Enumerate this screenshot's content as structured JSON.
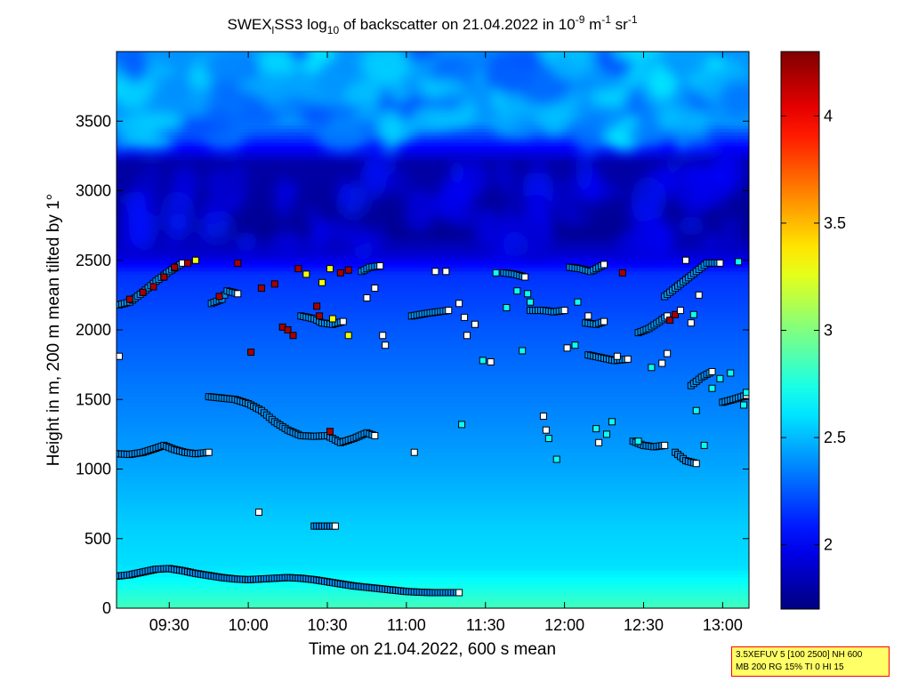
{
  "chart_data": {
    "type": "heatmap",
    "title_parts": [
      "SWEX",
      "l",
      "SS3 log",
      "10",
      " of backscatter on 21.04.2022 in 10",
      "-9",
      " m",
      "-1",
      " sr",
      "-1"
    ],
    "xlabel": "Time on 21.04.2022, 600 s mean",
    "ylabel": "Height in m, 200 m mean tilted by 1°",
    "x_unit": "minutes after midnight",
    "xlim": [
      550,
      790
    ],
    "ylim": [
      0,
      4000
    ],
    "x_ticks": [
      {
        "v": 570,
        "label": "09:30"
      },
      {
        "v": 600,
        "label": "10:00"
      },
      {
        "v": 630,
        "label": "10:30"
      },
      {
        "v": 660,
        "label": "11:00"
      },
      {
        "v": 690,
        "label": "11:30"
      },
      {
        "v": 720,
        "label": "12:00"
      },
      {
        "v": 750,
        "label": "12:30"
      },
      {
        "v": 780,
        "label": "13:00"
      }
    ],
    "y_ticks": [
      {
        "v": 0,
        "label": "0"
      },
      {
        "v": 500,
        "label": "500"
      },
      {
        "v": 1000,
        "label": "1000"
      },
      {
        "v": 1500,
        "label": "1500"
      },
      {
        "v": 2000,
        "label": "2000"
      },
      {
        "v": 2500,
        "label": "2500"
      },
      {
        "v": 3000,
        "label": "3000"
      },
      {
        "v": 3500,
        "label": "3500"
      }
    ],
    "colorbar": {
      "range": [
        1.7,
        4.3
      ],
      "ticks": [
        {
          "v": 2,
          "label": "2"
        },
        {
          "v": 2.5,
          "label": "2.5"
        },
        {
          "v": 3,
          "label": "3"
        },
        {
          "v": 3.5,
          "label": "3.5"
        },
        {
          "v": 4,
          "label": "4"
        }
      ],
      "colormap": "jet"
    },
    "field_profile": [
      {
        "h": 0,
        "v": 2.85
      },
      {
        "h": 120,
        "v": 2.75
      },
      {
        "h": 300,
        "v": 2.6
      },
      {
        "h": 600,
        "v": 2.55
      },
      {
        "h": 1000,
        "v": 2.45
      },
      {
        "h": 1500,
        "v": 2.35
      },
      {
        "h": 2000,
        "v": 2.25
      },
      {
        "h": 2400,
        "v": 2.15
      },
      {
        "h": 2550,
        "v": 1.9
      },
      {
        "h": 2700,
        "v": 1.75
      },
      {
        "h": 3200,
        "v": 1.8
      },
      {
        "h": 3500,
        "v": 2.4
      },
      {
        "h": 4000,
        "v": 2.4
      }
    ],
    "layer_series": [
      {
        "v": 2.4,
        "points": [
          [
            550,
            230
          ],
          [
            555,
            240
          ],
          [
            560,
            260
          ],
          [
            565,
            280
          ],
          [
            570,
            285
          ],
          [
            575,
            270
          ],
          [
            580,
            250
          ],
          [
            585,
            235
          ],
          [
            590,
            220
          ],
          [
            595,
            210
          ],
          [
            600,
            205
          ],
          [
            605,
            210
          ],
          [
            610,
            215
          ],
          [
            615,
            220
          ],
          [
            620,
            215
          ],
          [
            625,
            205
          ],
          [
            630,
            190
          ],
          [
            635,
            175
          ],
          [
            640,
            160
          ],
          [
            645,
            150
          ],
          [
            650,
            140
          ],
          [
            655,
            130
          ],
          [
            660,
            120
          ],
          [
            665,
            115
          ],
          [
            670,
            112
          ],
          [
            675,
            112
          ],
          [
            680,
            112
          ]
        ]
      },
      {
        "v": 2.4,
        "points": [
          [
            550,
            1110
          ],
          [
            555,
            1105
          ],
          [
            560,
            1120
          ],
          [
            565,
            1150
          ],
          [
            568,
            1170
          ],
          [
            572,
            1140
          ],
          [
            576,
            1120
          ],
          [
            580,
            1110
          ],
          [
            585,
            1120
          ]
        ]
      },
      {
        "v": 2.4,
        "points": [
          [
            585,
            1520
          ],
          [
            590,
            1510
          ],
          [
            595,
            1500
          ],
          [
            600,
            1470
          ],
          [
            605,
            1420
          ],
          [
            610,
            1340
          ],
          [
            615,
            1280
          ],
          [
            620,
            1240
          ],
          [
            625,
            1235
          ],
          [
            630,
            1240
          ],
          [
            635,
            1190
          ],
          [
            640,
            1220
          ],
          [
            645,
            1260
          ],
          [
            648,
            1240
          ]
        ]
      },
      {
        "v": 2.4,
        "points": [
          [
            551,
            2180
          ],
          [
            555,
            2200
          ],
          [
            560,
            2270
          ],
          [
            565,
            2350
          ],
          [
            570,
            2420
          ],
          [
            575,
            2480
          ]
        ]
      },
      {
        "v": 2.4,
        "points": [
          [
            586,
            2190
          ],
          [
            590,
            2220
          ],
          [
            592,
            2280
          ],
          [
            596,
            2260
          ]
        ]
      },
      {
        "v": 2.4,
        "points": [
          [
            620,
            2100
          ],
          [
            625,
            2080
          ],
          [
            628,
            2050
          ],
          [
            632,
            2040
          ],
          [
            636,
            2060
          ]
        ]
      },
      {
        "v": 2.4,
        "points": [
          [
            643,
            2420
          ],
          [
            646,
            2450
          ],
          [
            650,
            2460
          ]
        ]
      },
      {
        "v": 2.4,
        "points": [
          [
            662,
            2100
          ],
          [
            665,
            2110
          ],
          [
            668,
            2120
          ],
          [
            672,
            2130
          ],
          [
            676,
            2140
          ]
        ]
      },
      {
        "v": 2.4,
        "points": [
          [
            707,
            2140
          ],
          [
            712,
            2140
          ],
          [
            716,
            2130
          ],
          [
            720,
            2140
          ]
        ]
      },
      {
        "v": 2.4,
        "points": [
          [
            722,
            2450
          ],
          [
            726,
            2440
          ],
          [
            730,
            2420
          ],
          [
            735,
            2470
          ]
        ]
      },
      {
        "v": 2.4,
        "points": [
          [
            728,
            2050
          ],
          [
            732,
            2040
          ],
          [
            735,
            2060
          ]
        ]
      },
      {
        "v": 2.4,
        "points": [
          [
            729,
            1820
          ],
          [
            734,
            1800
          ],
          [
            739,
            1780
          ],
          [
            744,
            1790
          ]
        ]
      },
      {
        "v": 2.4,
        "points": [
          [
            748,
            1980
          ],
          [
            752,
            2010
          ],
          [
            756,
            2060
          ],
          [
            759,
            2100
          ]
        ]
      },
      {
        "v": 2.4,
        "points": [
          [
            758,
            2240
          ],
          [
            762,
            2300
          ],
          [
            766,
            2360
          ],
          [
            770,
            2420
          ],
          [
            774,
            2480
          ],
          [
            779,
            2480
          ]
        ]
      },
      {
        "v": 2.4,
        "points": [
          [
            768,
            1600
          ],
          [
            772,
            1660
          ],
          [
            776,
            1700
          ]
        ]
      },
      {
        "v": 2.4,
        "points": [
          [
            780,
            1480
          ],
          [
            784,
            1500
          ],
          [
            789,
            1530
          ]
        ]
      },
      {
        "v": 2.4,
        "points": [
          [
            746,
            1200
          ],
          [
            750,
            1170
          ],
          [
            754,
            1160
          ],
          [
            758,
            1170
          ]
        ]
      },
      {
        "v": 2.4,
        "points": [
          [
            762,
            1120
          ],
          [
            766,
            1060
          ],
          [
            770,
            1040
          ]
        ]
      },
      {
        "v": 2.4,
        "points": [
          [
            625,
            590
          ],
          [
            629,
            590
          ],
          [
            633,
            590
          ]
        ]
      },
      {
        "v": 2.4,
        "points": [
          [
            697,
            2410
          ],
          [
            701,
            2400
          ],
          [
            705,
            2380
          ]
        ]
      }
    ],
    "markers": [
      {
        "x": 551,
        "y": 1810,
        "v": 2.3
      },
      {
        "x": 555,
        "y": 2220,
        "v": 4.2
      },
      {
        "x": 560,
        "y": 2270,
        "v": 4.2
      },
      {
        "x": 564,
        "y": 2310,
        "v": 4.2
      },
      {
        "x": 568,
        "y": 2380,
        "v": 4.2
      },
      {
        "x": 572,
        "y": 2450,
        "v": 4.2
      },
      {
        "x": 577,
        "y": 2480,
        "v": 4.2
      },
      {
        "x": 580,
        "y": 2500,
        "v": 3.3
      },
      {
        "x": 589,
        "y": 2240,
        "v": 4.2
      },
      {
        "x": 596,
        "y": 2480,
        "v": 4.2
      },
      {
        "x": 601,
        "y": 1840,
        "v": 4.2
      },
      {
        "x": 605,
        "y": 2300,
        "v": 4.2
      },
      {
        "x": 610,
        "y": 2330,
        "v": 4.2
      },
      {
        "x": 613,
        "y": 2020,
        "v": 4.2
      },
      {
        "x": 615,
        "y": 2000,
        "v": 4.2
      },
      {
        "x": 617,
        "y": 1960,
        "v": 4.2
      },
      {
        "x": 619,
        "y": 2440,
        "v": 4.2
      },
      {
        "x": 622,
        "y": 2400,
        "v": 3.3
      },
      {
        "x": 626,
        "y": 2170,
        "v": 4.2
      },
      {
        "x": 627,
        "y": 2100,
        "v": 4.2
      },
      {
        "x": 628,
        "y": 2340,
        "v": 3.3
      },
      {
        "x": 631,
        "y": 2440,
        "v": 3.3
      },
      {
        "x": 632,
        "y": 2080,
        "v": 3.3
      },
      {
        "x": 635,
        "y": 2410,
        "v": 4.2
      },
      {
        "x": 638,
        "y": 1960,
        "v": 3.3
      },
      {
        "x": 638,
        "y": 2430,
        "v": 4.2
      },
      {
        "x": 631,
        "y": 1270,
        "v": 4.2
      },
      {
        "x": 604,
        "y": 690,
        "v": 2.3
      },
      {
        "x": 645,
        "y": 2230,
        "v": 2.3
      },
      {
        "x": 648,
        "y": 2300,
        "v": 2.3
      },
      {
        "x": 651,
        "y": 1960,
        "v": 2.3
      },
      {
        "x": 652,
        "y": 1890,
        "v": 2.3
      },
      {
        "x": 663,
        "y": 1120,
        "v": 2.3
      },
      {
        "x": 671,
        "y": 2420,
        "v": 2.3
      },
      {
        "x": 675,
        "y": 2420,
        "v": 2.3
      },
      {
        "x": 680,
        "y": 2190,
        "v": 2.3
      },
      {
        "x": 681,
        "y": 1320,
        "v": 2.7
      },
      {
        "x": 682,
        "y": 2090,
        "v": 2.3
      },
      {
        "x": 683,
        "y": 1960,
        "v": 2.3
      },
      {
        "x": 686,
        "y": 2040,
        "v": 2.3
      },
      {
        "x": 689,
        "y": 1780,
        "v": 2.7
      },
      {
        "x": 692,
        "y": 1770,
        "v": 2.3
      },
      {
        "x": 694,
        "y": 2410,
        "v": 2.7
      },
      {
        "x": 698,
        "y": 2160,
        "v": 2.7
      },
      {
        "x": 702,
        "y": 2280,
        "v": 2.7
      },
      {
        "x": 704,
        "y": 1850,
        "v": 2.7
      },
      {
        "x": 706,
        "y": 2260,
        "v": 2.7
      },
      {
        "x": 707,
        "y": 2200,
        "v": 2.7
      },
      {
        "x": 712,
        "y": 1380,
        "v": 2.3
      },
      {
        "x": 713,
        "y": 1280,
        "v": 2.3
      },
      {
        "x": 714,
        "y": 1220,
        "v": 2.7
      },
      {
        "x": 717,
        "y": 1070,
        "v": 2.7
      },
      {
        "x": 721,
        "y": 1870,
        "v": 2.3
      },
      {
        "x": 724,
        "y": 1890,
        "v": 2.7
      },
      {
        "x": 725,
        "y": 2200,
        "v": 2.7
      },
      {
        "x": 729,
        "y": 2100,
        "v": 2.3
      },
      {
        "x": 732,
        "y": 1290,
        "v": 2.7
      },
      {
        "x": 733,
        "y": 1190,
        "v": 2.3
      },
      {
        "x": 736,
        "y": 1250,
        "v": 2.7
      },
      {
        "x": 738,
        "y": 1340,
        "v": 2.7
      },
      {
        "x": 740,
        "y": 1810,
        "v": 2.3
      },
      {
        "x": 742,
        "y": 2410,
        "v": 4.2
      },
      {
        "x": 748,
        "y": 1200,
        "v": 2.7
      },
      {
        "x": 753,
        "y": 1730,
        "v": 2.7
      },
      {
        "x": 757,
        "y": 1760,
        "v": 2.3
      },
      {
        "x": 759,
        "y": 1830,
        "v": 2.3
      },
      {
        "x": 760,
        "y": 2070,
        "v": 4.2
      },
      {
        "x": 762,
        "y": 2110,
        "v": 4.2
      },
      {
        "x": 764,
        "y": 2140,
        "v": 2.3
      },
      {
        "x": 766,
        "y": 2500,
        "v": 2.3
      },
      {
        "x": 768,
        "y": 2050,
        "v": 2.3
      },
      {
        "x": 769,
        "y": 2110,
        "v": 2.7
      },
      {
        "x": 770,
        "y": 1420,
        "v": 2.7
      },
      {
        "x": 771,
        "y": 2250,
        "v": 2.3
      },
      {
        "x": 773,
        "y": 1170,
        "v": 2.7
      },
      {
        "x": 776,
        "y": 1580,
        "v": 2.7
      },
      {
        "x": 779,
        "y": 1650,
        "v": 2.7
      },
      {
        "x": 783,
        "y": 1690,
        "v": 2.7
      },
      {
        "x": 786,
        "y": 2490,
        "v": 2.7
      },
      {
        "x": 788,
        "y": 1460,
        "v": 2.7
      },
      {
        "x": 789,
        "y": 1550,
        "v": 2.7
      }
    ]
  },
  "info_box": {
    "line1": "3.5XEFUV 5 [100 2500] NH 600",
    "line2": "MB 200 RG 15% TI 0 HI 15"
  },
  "colors": {
    "marker_outline": "#000000",
    "layer_fill": "#000000",
    "info_border": "#ff0000",
    "info_background": "#ffff66"
  }
}
